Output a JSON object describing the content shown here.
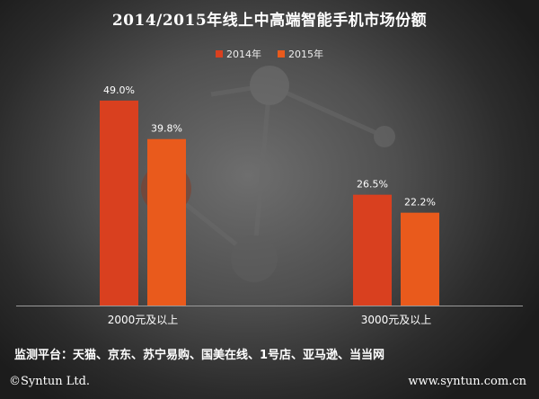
{
  "chart_data": {
    "type": "bar",
    "title": "2014/2015年线上中高端智能手机市场份额",
    "categories": [
      "2000元及以上",
      "3000元及以上"
    ],
    "series": [
      {
        "name": "2014年",
        "values": [
          49.0,
          26.5
        ],
        "labels": [
          "49.0%",
          "26.5%"
        ],
        "color": "#d9401f"
      },
      {
        "name": "2015年",
        "values": [
          39.8,
          22.2
        ],
        "labels": [
          "39.8%",
          "22.2%"
        ],
        "color": "#e95a1c"
      }
    ],
    "ylim": [
      0,
      55
    ],
    "grid": false,
    "legend_position": "top"
  },
  "source_note": "监测平台：天猫、京东、苏宁易购、国美在线、1号店、亚马逊、当当网",
  "footer": {
    "copyright": "©Syntun Ltd.",
    "website": "www.syntun.com.cn"
  }
}
